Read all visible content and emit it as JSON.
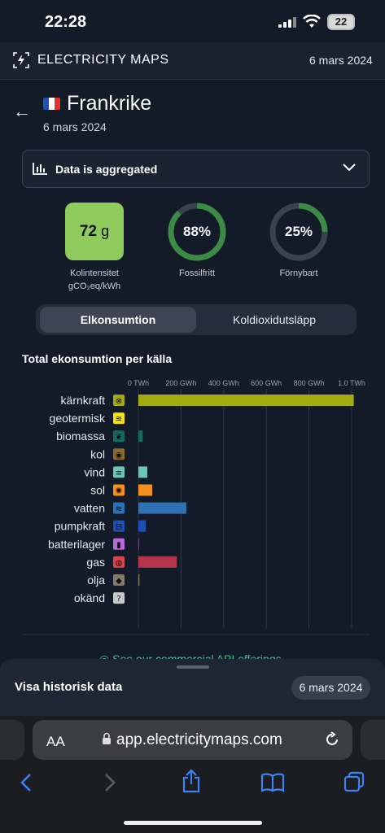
{
  "status_bar": {
    "time": "22:28",
    "battery": "22"
  },
  "header": {
    "brand": "ELECTRICITY MAPS",
    "date": "6 mars 2024"
  },
  "zone": {
    "name": "Frankrike",
    "date": "6 mars 2024"
  },
  "aggregation": {
    "label": "Data is aggregated"
  },
  "metrics": {
    "carbon_intensity": {
      "value": "72",
      "unit": "g",
      "label_line1": "Kolintensitet",
      "label_line2": "gCO₂eq/kWh",
      "color": "#8ecb5c"
    },
    "fossil_free": {
      "value": "88%",
      "fraction": 0.88,
      "label": "Fossilfritt"
    },
    "renewable": {
      "value": "25%",
      "fraction": 0.25,
      "label": "Förnybart"
    }
  },
  "tabs": {
    "active": "Elkonsumtion",
    "other": "Koldioxidutsläpp"
  },
  "chart_title": "Total ekonsumtion per källa",
  "chart_data": {
    "type": "bar",
    "orientation": "horizontal",
    "x_ticks": [
      "0 TWh",
      "200 GWh",
      "400 GWh",
      "600 GWh",
      "800 GWh",
      "1.0 TWh"
    ],
    "xlim": [
      0,
      1000
    ],
    "unit": "GWh",
    "categories": [
      "kärnkraft",
      "geotermisk",
      "biomassa",
      "kol",
      "vind",
      "sol",
      "vatten",
      "pumpkraft",
      "batterilager",
      "gas",
      "olja",
      "okänd"
    ],
    "values": [
      1010,
      0,
      20,
      0,
      42,
      65,
      225,
      35,
      2,
      180,
      5,
      0
    ],
    "colors": [
      "#a2ac0f",
      "#f2e300",
      "#146a5e",
      "#8a6a2e",
      "#6ec5b3",
      "#f58f1f",
      "#2f71b2",
      "#1d4fb7",
      "#b96ad8",
      "#b7344e",
      "#85796a",
      "#c9c9c9"
    ],
    "icon_colors": [
      "#a2ac0f",
      "#f2e300",
      "#146a5e",
      "#8a6a2e",
      "#6ec5b3",
      "#f58f1f",
      "#2f71b2",
      "#1d4fb7",
      "#b96ad8",
      "#d8454b",
      "#85796a",
      "#c9c9c9"
    ],
    "icons": [
      "nuclear-icon",
      "geothermal-icon",
      "biomass-icon",
      "coal-icon",
      "wind-icon",
      "solar-icon",
      "hydro-icon",
      "pumped-storage-icon",
      "battery-icon",
      "gas-icon",
      "oil-icon",
      "unknown-icon"
    ],
    "icon_glyphs": [
      "⊗",
      "≋",
      "❦",
      "◉",
      "≡",
      "✺",
      "≋",
      "⊟",
      "▮",
      "◍",
      "◆",
      "?"
    ]
  },
  "promo": "See our commercial API offerings",
  "history": {
    "label": "Visa historisk data",
    "date": "6 mars 2024"
  },
  "browser": {
    "aa": "AA",
    "url": "app.electricitymaps.com"
  }
}
